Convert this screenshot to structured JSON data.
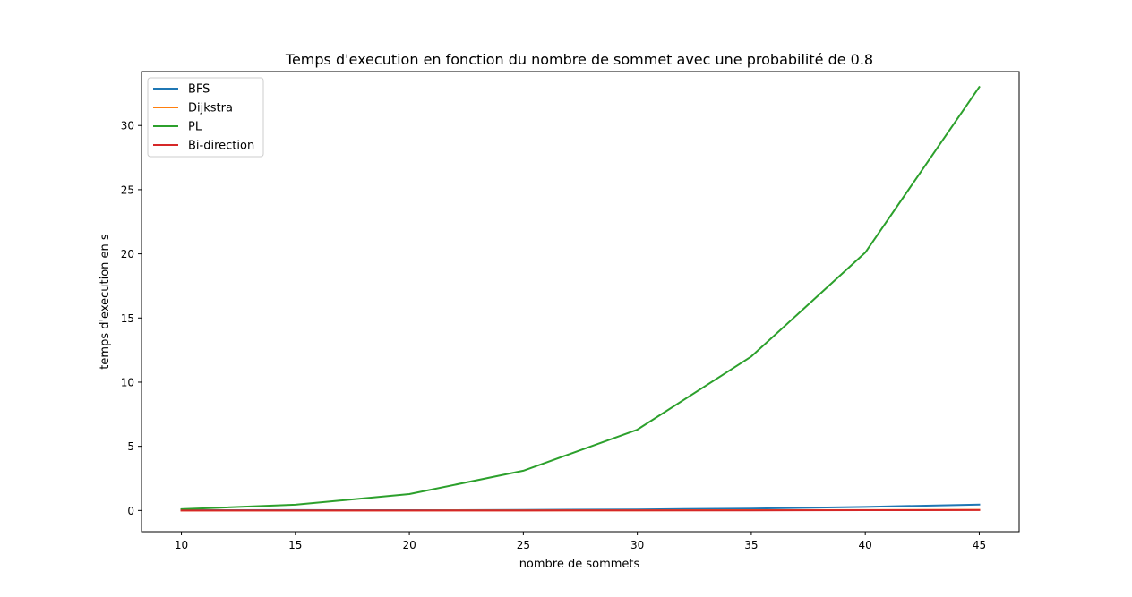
{
  "chart_data": {
    "type": "line",
    "title": "Temps d'execution en fonction du nombre de sommet avec une probabilité de 0.8",
    "xlabel": "nombre de sommets",
    "ylabel": "temps d'execution en s",
    "x": [
      10,
      15,
      20,
      25,
      30,
      35,
      40,
      45
    ],
    "xlim": [
      8.25,
      46.75
    ],
    "ylim": [
      -1.65,
      34.2
    ],
    "xticks": [
      10,
      15,
      20,
      25,
      30,
      35,
      40,
      45
    ],
    "yticks": [
      0,
      5,
      10,
      15,
      20,
      25,
      30
    ],
    "grid": false,
    "legend_position": "top-left",
    "series": [
      {
        "name": "BFS",
        "color": "#1f77b4",
        "values": [
          0.02,
          0.03,
          0.02,
          0.04,
          0.08,
          0.15,
          0.28,
          0.46
        ]
      },
      {
        "name": "Dijkstra",
        "color": "#ff7f0e",
        "values": [
          0.0,
          0.0,
          0.0,
          0.01,
          0.01,
          0.02,
          0.03,
          0.05
        ]
      },
      {
        "name": "PL",
        "color": "#2ca02c",
        "values": [
          0.1,
          0.45,
          1.28,
          3.1,
          6.3,
          12.0,
          20.1,
          33.0
        ]
      },
      {
        "name": "Bi-direction",
        "color": "#d62728",
        "values": [
          0.0,
          0.0,
          0.0,
          0.0,
          0.01,
          0.01,
          0.02,
          0.03
        ]
      }
    ]
  }
}
